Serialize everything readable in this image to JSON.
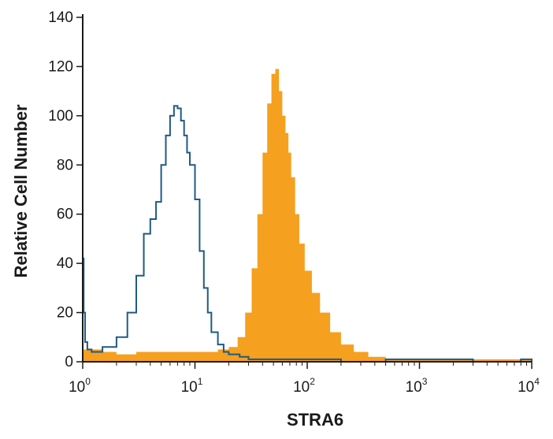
{
  "chart_data": {
    "type": "area",
    "xlabel": "STRA6",
    "ylabel": "Relative Cell Number",
    "xscale": "log",
    "xlim": [
      1,
      10000
    ],
    "ylim": [
      0,
      140
    ],
    "x_ticks": [
      {
        "value": 1,
        "base": "10",
        "exp": "0"
      },
      {
        "value": 10,
        "base": "10",
        "exp": "1"
      },
      {
        "value": 100,
        "base": "10",
        "exp": "2"
      },
      {
        "value": 1000,
        "base": "10",
        "exp": "3"
      },
      {
        "value": 10000,
        "base": "10",
        "exp": "4"
      }
    ],
    "y_ticks": [
      0,
      20,
      40,
      60,
      80,
      100,
      120,
      140
    ],
    "grid": false,
    "series": [
      {
        "style": "filled",
        "color": "#f5a01e",
        "x": [
          1.0,
          1.5,
          2.0,
          3.0,
          5.0,
          8.0,
          12,
          16,
          20,
          24,
          28,
          32,
          36,
          40,
          44,
          48,
          52,
          56,
          60,
          64,
          68,
          72,
          78,
          85,
          95,
          110,
          130,
          160,
          200,
          260,
          350,
          500,
          1000,
          3000,
          10000
        ],
        "y": [
          5,
          4,
          3,
          4,
          4,
          4,
          4,
          5,
          6,
          10,
          20,
          38,
          60,
          85,
          105,
          117,
          119,
          110,
          100,
          93,
          85,
          75,
          60,
          48,
          37,
          28,
          20,
          12,
          7,
          4,
          2,
          1,
          1,
          1,
          0
        ]
      },
      {
        "style": "outline",
        "color": "#1f5a85",
        "x": [
          1.0,
          1.02,
          1.05,
          1.1,
          1.2,
          1.5,
          2.0,
          2.5,
          3.0,
          3.5,
          4.0,
          4.5,
          5.0,
          5.5,
          6.0,
          6.5,
          7.0,
          7.5,
          8.0,
          8.5,
          9.0,
          10,
          11,
          12,
          13,
          14,
          16,
          18,
          20,
          25,
          30,
          40,
          60,
          100,
          200,
          500,
          1000,
          3000,
          8000,
          10000
        ],
        "y": [
          42,
          20,
          8,
          5,
          4,
          6,
          10,
          20,
          35,
          52,
          58,
          65,
          80,
          92,
          100,
          104,
          103,
          98,
          92,
          85,
          80,
          66,
          45,
          30,
          20,
          12,
          7,
          4,
          3,
          2,
          1,
          1,
          1,
          1,
          0,
          1,
          1,
          0,
          1,
          0
        ]
      }
    ]
  }
}
